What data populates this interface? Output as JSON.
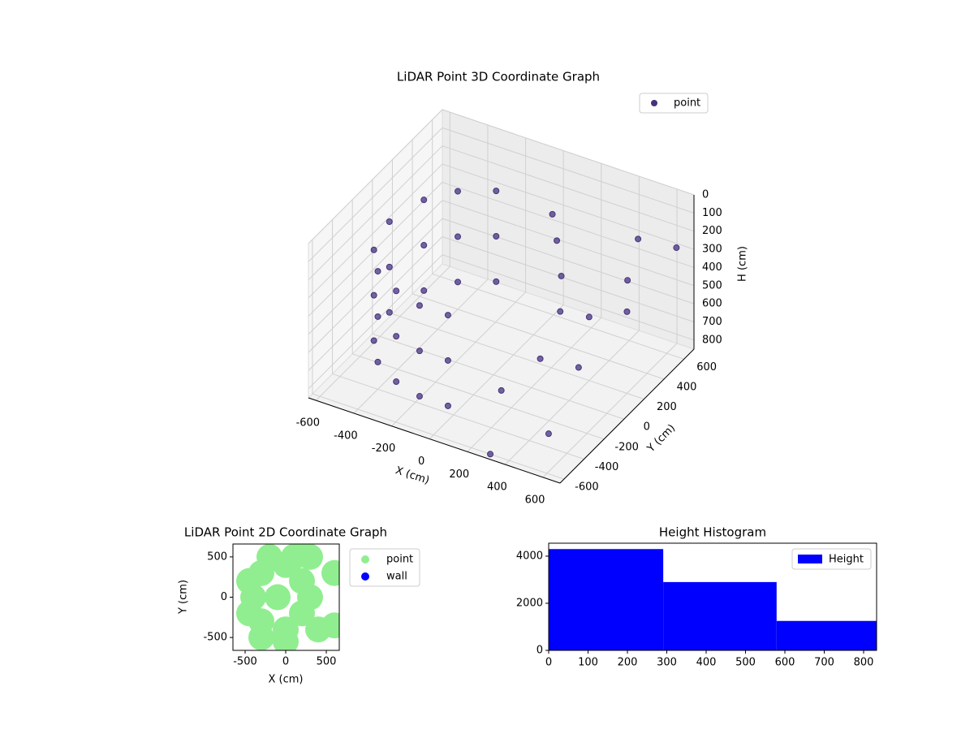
{
  "chart_data": [
    {
      "type": "scatter3d",
      "title": "LiDAR Point 3D Coordinate Graph",
      "xlabel": "X (cm)",
      "ylabel": "Y (cm)",
      "zlabel": "H (cm)",
      "xlim": [
        -640,
        690
      ],
      "ylim": [
        -640,
        700
      ],
      "zlim": [
        850,
        0
      ],
      "xticks": [
        -600,
        -400,
        -200,
        0,
        200,
        400,
        600
      ],
      "yticks": [
        -600,
        -400,
        -200,
        0,
        200,
        400,
        600
      ],
      "zticks": [
        0,
        100,
        200,
        300,
        400,
        500,
        600,
        700,
        800
      ],
      "grid": true,
      "legend": "upper right",
      "series": [
        {
          "name": "point",
          "color": "#46337e",
          "x": [
            -550,
            -500,
            -400,
            -250,
            -500,
            -400,
            -250,
            -100,
            50,
            -550,
            -500,
            -400,
            -250,
            -500,
            -400,
            -250,
            -100,
            50,
            -550,
            -500,
            -400,
            -250,
            -500,
            -400,
            -250,
            -100,
            50,
            100,
            150,
            200,
            300,
            400,
            500,
            550,
            600,
            300,
            450,
            200,
            650,
            300,
            450
          ],
          "y": [
            0,
            250,
            400,
            500,
            -250,
            -400,
            -500,
            -550,
            -550,
            0,
            250,
            400,
            500,
            -250,
            -400,
            -500,
            -550,
            -550,
            0,
            250,
            400,
            500,
            -250,
            -400,
            -500,
            -550,
            -550,
            400,
            350,
            300,
            100,
            200,
            500,
            300,
            200,
            -100,
            0,
            -300,
            600,
            -600,
            -300
          ],
          "z": [
            200,
            200,
            200,
            200,
            200,
            200,
            200,
            200,
            200,
            450,
            450,
            450,
            450,
            450,
            450,
            450,
            450,
            450,
            700,
            700,
            700,
            700,
            700,
            700,
            700,
            700,
            700,
            150,
            250,
            400,
            450,
            500,
            200,
            300,
            400,
            600,
            650,
            700,
            250,
            850,
            850
          ]
        }
      ]
    },
    {
      "type": "scatter",
      "title": "LiDAR Point 2D Coordinate Graph",
      "xlabel": "X (cm)",
      "ylabel": "Y (cm)",
      "xlim": [
        -650,
        660
      ],
      "ylim": [
        -660,
        660
      ],
      "xticks": [
        -500,
        0,
        500
      ],
      "yticks": [
        -500,
        0,
        500
      ],
      "legend": "outside right",
      "series": [
        {
          "name": "point",
          "color": "#90ee90",
          "x": [
            -400,
            -300,
            -300,
            0,
            0,
            -100,
            200,
            200,
            100,
            300,
            400,
            -450,
            -450,
            600,
            600,
            300,
            0,
            -200,
            -300,
            200
          ],
          "y": [
            0,
            300,
            -300,
            400,
            -400,
            0,
            200,
            -200,
            500,
            500,
            -400,
            -200,
            200,
            300,
            -350,
            0,
            -550,
            500,
            -500,
            600
          ]
        },
        {
          "name": "wall",
          "color": "#0000ff",
          "x": [],
          "y": []
        }
      ]
    },
    {
      "type": "histogram",
      "title": "Height Histogram",
      "name": "Height",
      "color": "#0000ff",
      "bins": [
        0,
        291,
        579,
        833
      ],
      "values": [
        4300,
        2900,
        1250
      ],
      "xlim": [
        0,
        833
      ],
      "ylim": [
        0,
        4550
      ],
      "xticks": [
        0,
        100,
        200,
        300,
        400,
        500,
        600,
        700,
        800
      ],
      "yticks": [
        0,
        2000,
        4000
      ],
      "legend": "upper right"
    }
  ]
}
